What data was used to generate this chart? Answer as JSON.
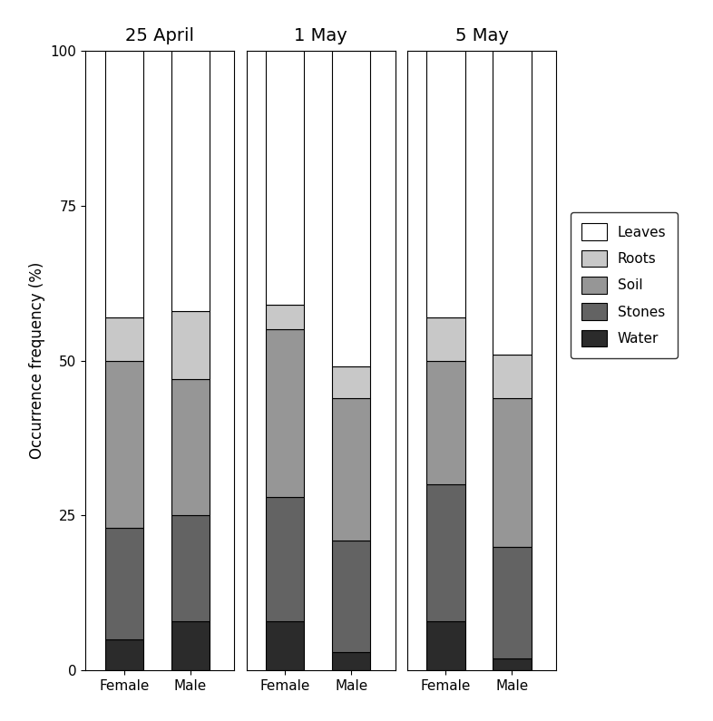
{
  "groups": [
    "25 April",
    "1 May",
    "5 May"
  ],
  "categories": [
    "Female",
    "Male"
  ],
  "segments": [
    "Water",
    "Stones",
    "Soil",
    "Roots",
    "Leaves"
  ],
  "colors": [
    "#2b2b2b",
    "#636363",
    "#969696",
    "#c8c8c8",
    "#ffffff"
  ],
  "segment_edgecolor": "#000000",
  "values": {
    "25 April": {
      "Female": [
        5,
        18,
        27,
        7,
        43
      ],
      "Male": [
        8,
        17,
        22,
        11,
        42
      ]
    },
    "1 May": {
      "Female": [
        8,
        20,
        27,
        4,
        41
      ],
      "Male": [
        3,
        18,
        23,
        5,
        51
      ]
    },
    "5 May": {
      "Female": [
        8,
        22,
        20,
        7,
        43
      ],
      "Male": [
        2,
        18,
        24,
        7,
        49
      ]
    }
  },
  "ylabel": "Occurrence frequency (%)",
  "ylim": [
    0,
    100
  ],
  "yticks": [
    0,
    25,
    50,
    75,
    100
  ],
  "title_fontsize": 14,
  "label_fontsize": 12,
  "tick_fontsize": 11,
  "legend_fontsize": 11
}
